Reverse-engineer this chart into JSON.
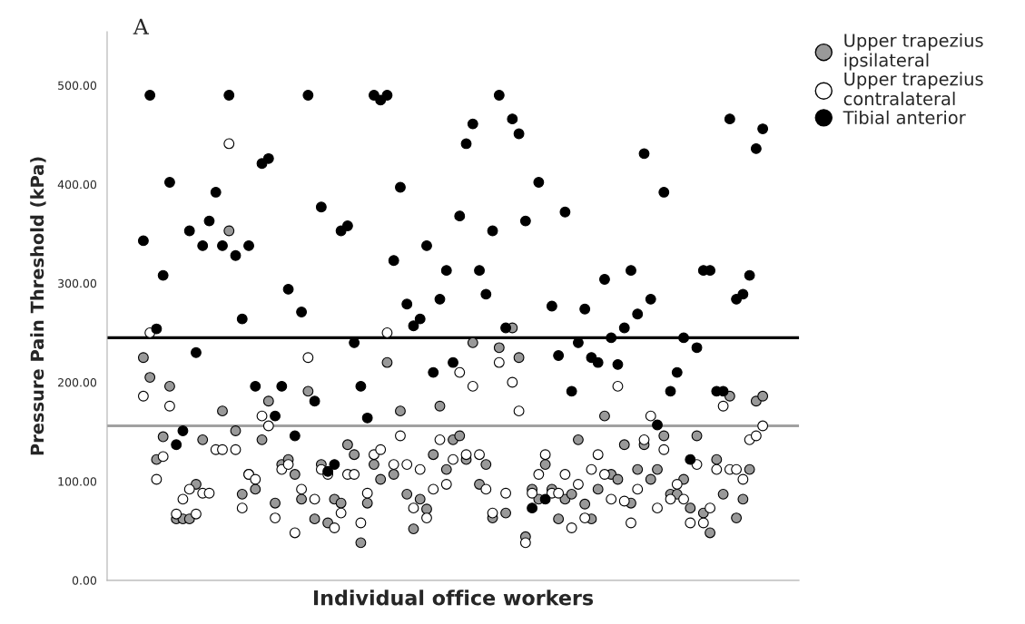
{
  "chart_data": {
    "type": "scatter",
    "xlabel": "Individual office workers",
    "ylabel": "Pressure Pain Threshold (kPa)",
    "annotations": [
      "A"
    ],
    "categories": [
      null,
      null,
      null,
      null,
      null,
      null,
      null,
      null,
      null,
      null,
      null,
      null,
      null,
      null,
      null,
      null,
      null,
      null,
      null,
      null,
      null,
      null,
      null,
      null,
      null,
      null,
      null,
      null,
      null,
      null,
      null,
      null,
      null,
      null,
      null,
      null,
      null,
      null,
      null,
      null,
      null,
      null,
      null,
      null,
      null,
      null,
      null,
      null,
      null,
      null,
      null,
      null,
      null,
      null,
      null,
      null,
      null,
      null,
      null,
      null,
      null,
      null,
      null,
      null,
      null,
      null,
      null,
      null,
      null,
      null,
      null,
      null,
      null,
      null,
      null,
      null,
      null,
      null,
      null,
      null,
      null,
      null,
      null,
      null,
      null,
      null,
      null,
      null,
      null,
      null,
      null,
      null,
      null,
      null,
      null,
      null,
      null,
      null,
      null,
      null,
      null,
      null,
      null,
      null,
      null
    ],
    "series": [
      {
        "name": "Upper trapezius\nipsilateral",
        "color": "#999999",
        "values": [
          null,
          null,
          null,
          null,
          null,
          225,
          205,
          122,
          145,
          196,
          62,
          62,
          62,
          97,
          142,
          null,
          null,
          171,
          353,
          151,
          87,
          107,
          92,
          142,
          181,
          78,
          117,
          122,
          107,
          82,
          191,
          62,
          117,
          58,
          82,
          78,
          137,
          127,
          38,
          78,
          117,
          102,
          220,
          107,
          171,
          87,
          52,
          82,
          72,
          127,
          176,
          112,
          142,
          146,
          122,
          240,
          97,
          117,
          63,
          235,
          68,
          255,
          225,
          44,
          92,
          82,
          117,
          92,
          62,
          82,
          87,
          142,
          77,
          62,
          92,
          166,
          107,
          102,
          137,
          78,
          112,
          137,
          102,
          112,
          146,
          87,
          87,
          102,
          73,
          146,
          68,
          48,
          122,
          87,
          186,
          63,
          82,
          112,
          181,
          186,
          null,
          null,
          null,
          null,
          null
        ]
      },
      {
        "name": "Upper trapezius\ncontralateral",
        "color": "#ffffff",
        "values": [
          null,
          null,
          null,
          null,
          null,
          186,
          250,
          102,
          125,
          176,
          67,
          82,
          92,
          67,
          88,
          88,
          132,
          132,
          441,
          132,
          73,
          107,
          102,
          166,
          156,
          63,
          112,
          117,
          48,
          92,
          225,
          82,
          112,
          107,
          53,
          68,
          107,
          107,
          58,
          88,
          127,
          132,
          250,
          117,
          146,
          117,
          73,
          112,
          63,
          92,
          142,
          97,
          122,
          210,
          127,
          196,
          127,
          92,
          68,
          220,
          88,
          200,
          171,
          38,
          88,
          107,
          127,
          88,
          88,
          107,
          53,
          97,
          63,
          112,
          127,
          107,
          82,
          196,
          80,
          58,
          92,
          142,
          166,
          73,
          132,
          82,
          97,
          82,
          58,
          117,
          58,
          73,
          112,
          176,
          112,
          112,
          102,
          142,
          146,
          156,
          null,
          null,
          null,
          null,
          null
        ]
      },
      {
        "name": "Tibial anterior",
        "color": "#000000",
        "values": [
          null,
          null,
          null,
          null,
          null,
          343,
          490,
          254,
          308,
          402,
          137,
          151,
          353,
          230,
          338,
          363,
          392,
          338,
          490,
          328,
          264,
          338,
          196,
          421,
          426,
          166,
          196,
          294,
          146,
          271,
          490,
          181,
          377,
          110,
          117,
          353,
          358,
          240,
          196,
          164,
          490,
          485,
          490,
          323,
          397,
          279,
          257,
          264,
          338,
          210,
          284,
          313,
          220,
          368,
          441,
          461,
          313,
          289,
          353,
          490,
          255,
          466,
          451,
          363,
          73,
          402,
          82,
          277,
          227,
          372,
          191,
          240,
          274,
          225,
          220,
          304,
          245,
          218,
          255,
          313,
          269,
          431,
          284,
          157,
          392,
          191,
          210,
          245,
          122,
          235,
          313,
          313,
          191,
          191,
          466,
          284,
          289,
          308,
          436,
          456,
          null,
          null,
          null,
          null,
          null
        ]
      }
    ],
    "ylim": [
      0,
      554
    ],
    "yticks": [
      {
        "value": 0,
        "label": "0.00"
      },
      {
        "value": 100,
        "label": "100.00"
      },
      {
        "value": 200,
        "label": "200.00"
      },
      {
        "value": 300,
        "label": "300.00"
      },
      {
        "value": 400,
        "label": "400.00"
      },
      {
        "value": 500,
        "label": "500.00"
      }
    ],
    "tick_labels": "y",
    "ref_lines": [
      {
        "axis": "y",
        "value": 245,
        "color": "#000000"
      },
      {
        "axis": "y",
        "value": 156,
        "color": "#a0a0a0"
      }
    ],
    "marker": "circle",
    "grid": false,
    "legend": "top right"
  }
}
